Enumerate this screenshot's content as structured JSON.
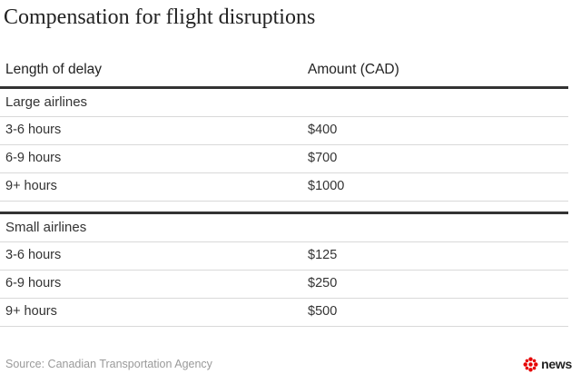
{
  "title": "Compensation for flight disruptions",
  "table": {
    "headers": {
      "col1": "Length of delay",
      "col2": "Amount (CAD)"
    },
    "groups": [
      {
        "label": "Large airlines",
        "rows": [
          {
            "delay": "3-6 hours",
            "amount": "$400"
          },
          {
            "delay": "6-9 hours",
            "amount": "$700"
          },
          {
            "delay": "9+ hours",
            "amount": "$1000"
          }
        ]
      },
      {
        "label": "Small airlines",
        "rows": [
          {
            "delay": "3-6 hours",
            "amount": "$125"
          },
          {
            "delay": "6-9 hours",
            "amount": "$250"
          },
          {
            "delay": "9+ hours",
            "amount": "$500"
          }
        ]
      }
    ]
  },
  "source": "Source: Canadian Transportation Agency",
  "brand": {
    "icon": "cbc-gem-icon",
    "text": "news",
    "accent": "#e60505"
  }
}
